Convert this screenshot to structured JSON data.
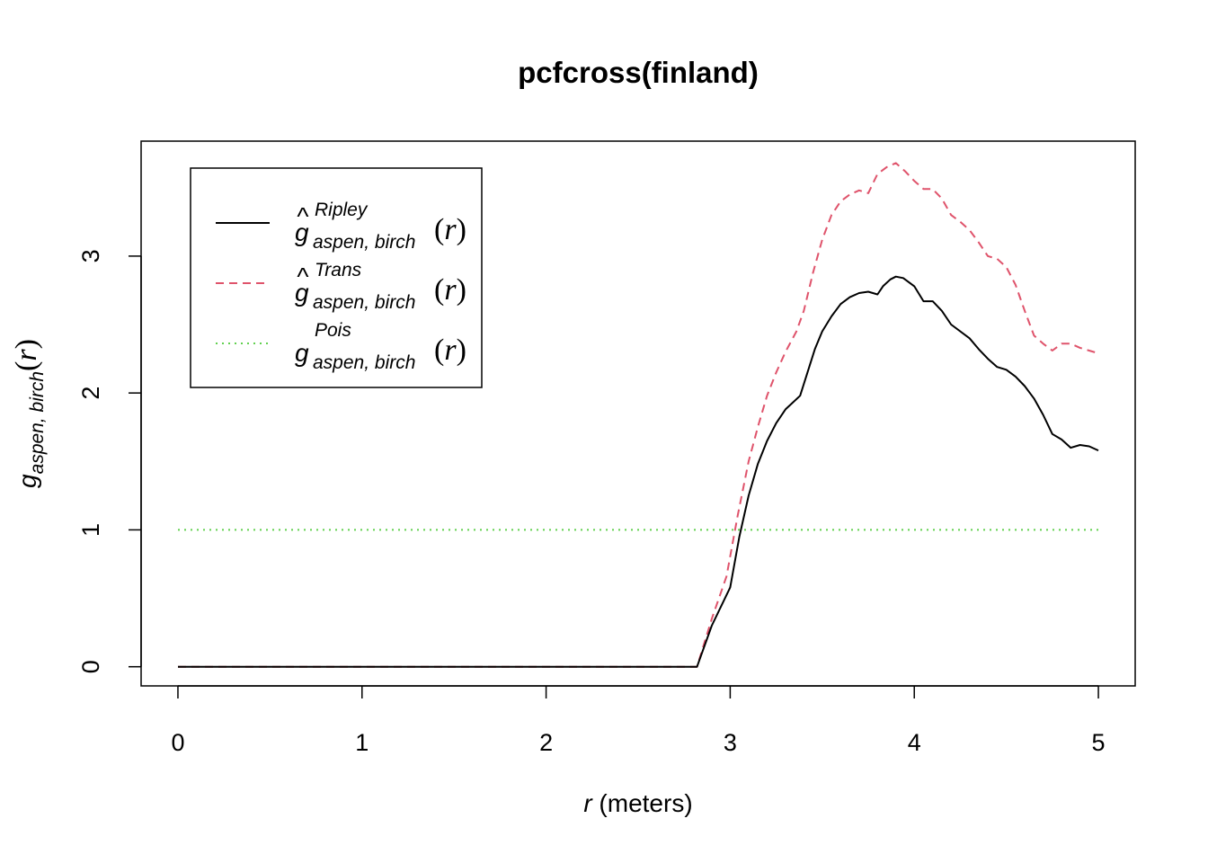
{
  "chart_data": {
    "type": "line",
    "title": "pcfcross(finland)",
    "xlabel": {
      "symbol": "r",
      "rest": " (meters)"
    },
    "ylabel": {
      "base": "g",
      "sub": "aspen, birch",
      "arg": "r"
    },
    "xlim": [
      -0.2,
      5.2
    ],
    "ylim": [
      -0.14,
      3.84
    ],
    "xticks": [
      0,
      1,
      2,
      3,
      4,
      5
    ],
    "yticks": [
      0,
      1,
      2,
      3
    ],
    "grid": false,
    "legend_position": "top-left",
    "series": [
      {
        "label": {
          "base": "g",
          "hat": "^",
          "sup": "Ripley",
          "sub": "aspen, birch",
          "arg": "r"
        },
        "color": "#000000",
        "dash": "solid",
        "x": [
          0,
          2.82,
          2.9,
          3.0,
          3.05,
          3.1,
          3.15,
          3.2,
          3.25,
          3.3,
          3.38,
          3.42,
          3.46,
          3.5,
          3.55,
          3.6,
          3.65,
          3.7,
          3.75,
          3.8,
          3.83,
          3.87,
          3.9,
          3.94,
          4.0,
          4.05,
          4.1,
          4.15,
          4.2,
          4.3,
          4.35,
          4.4,
          4.45,
          4.5,
          4.55,
          4.6,
          4.65,
          4.7,
          4.75,
          4.8,
          4.85,
          4.9,
          4.95,
          5.0
        ],
        "y": [
          0,
          0,
          0.3,
          0.58,
          0.95,
          1.25,
          1.48,
          1.65,
          1.78,
          1.88,
          1.98,
          2.15,
          2.32,
          2.45,
          2.56,
          2.65,
          2.7,
          2.73,
          2.74,
          2.72,
          2.78,
          2.83,
          2.85,
          2.84,
          2.78,
          2.67,
          2.67,
          2.6,
          2.5,
          2.4,
          2.32,
          2.25,
          2.19,
          2.17,
          2.12,
          2.05,
          1.96,
          1.84,
          1.7,
          1.66,
          1.6,
          1.62,
          1.61,
          1.58
        ]
      },
      {
        "label": {
          "base": "g",
          "hat": "^",
          "sup": "Trans",
          "sub": "aspen, birch",
          "arg": "r"
        },
        "color": "#DF536B",
        "dash": "dashed",
        "x": [
          0,
          2.82,
          2.9,
          2.98,
          3.04,
          3.1,
          3.15,
          3.2,
          3.25,
          3.3,
          3.36,
          3.4,
          3.45,
          3.5,
          3.55,
          3.6,
          3.65,
          3.7,
          3.75,
          3.8,
          3.85,
          3.9,
          3.95,
          4.0,
          4.05,
          4.1,
          4.15,
          4.2,
          4.25,
          4.3,
          4.35,
          4.4,
          4.45,
          4.5,
          4.55,
          4.6,
          4.65,
          4.7,
          4.75,
          4.8,
          4.85,
          4.9,
          4.95,
          5.0
        ],
        "y": [
          0,
          0,
          0.35,
          0.66,
          1.1,
          1.5,
          1.75,
          1.98,
          2.15,
          2.3,
          2.45,
          2.6,
          2.88,
          3.12,
          3.3,
          3.4,
          3.45,
          3.48,
          3.46,
          3.6,
          3.65,
          3.68,
          3.62,
          3.55,
          3.49,
          3.49,
          3.42,
          3.3,
          3.25,
          3.19,
          3.1,
          3.0,
          2.98,
          2.92,
          2.79,
          2.6,
          2.42,
          2.36,
          2.31,
          2.36,
          2.36,
          2.33,
          2.31,
          2.29
        ]
      },
      {
        "label": {
          "base": "g",
          "sup": "Pois",
          "sub": "aspen, birch",
          "arg": "r"
        },
        "color": "#61D04F",
        "dash": "dotted",
        "x": [
          0,
          5.0
        ],
        "y": [
          1,
          1
        ]
      }
    ]
  }
}
